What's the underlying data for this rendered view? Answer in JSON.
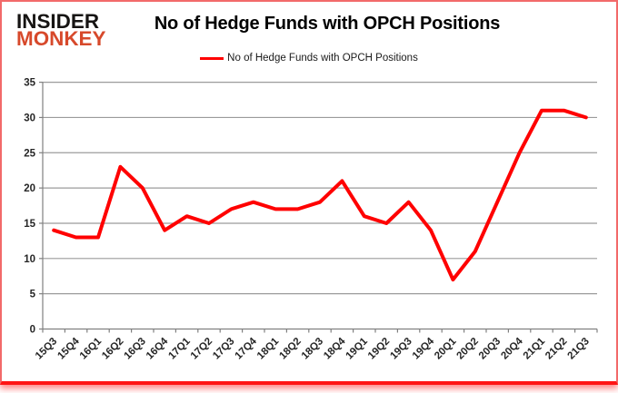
{
  "logo": {
    "line1": "INSIDER",
    "line2": "MONKEY"
  },
  "title": "No of Hedge Funds with OPCH Positions",
  "legend": {
    "label": "No of Hedge Funds with OPCH Positions",
    "line_color": "#FF0000"
  },
  "colors": {
    "accent_red": "#FF0000",
    "logo_red": "#D7492B",
    "grid": "#9B9B9B",
    "axis": "#808080",
    "axis_text": "#262626",
    "border": "#F26A6A"
  },
  "chart_data": {
    "type": "line",
    "title": "No of Hedge Funds with OPCH Positions",
    "categories": [
      "15Q3",
      "15Q4",
      "16Q1",
      "16Q2",
      "16Q3",
      "16Q4",
      "17Q1",
      "17Q2",
      "17Q3",
      "17Q4",
      "18Q1",
      "18Q2",
      "18Q3",
      "18Q4",
      "19Q1",
      "19Q2",
      "19Q3",
      "19Q4",
      "20Q1",
      "20Q2",
      "20Q3",
      "20Q4",
      "21Q1",
      "21Q2",
      "21Q3"
    ],
    "series": [
      {
        "name": "No of Hedge Funds with OPCH Positions",
        "color": "#FF0000",
        "values": [
          14,
          13,
          13,
          23,
          20,
          14,
          16,
          15,
          17,
          18,
          17,
          17,
          18,
          21,
          16,
          15,
          18,
          14,
          7,
          11,
          18,
          25,
          31,
          31,
          30
        ]
      }
    ],
    "xlabel": "",
    "ylabel": "",
    "ylim": [
      0,
      35
    ],
    "ytick_step": 5,
    "grid": true,
    "legend_position": "top"
  }
}
